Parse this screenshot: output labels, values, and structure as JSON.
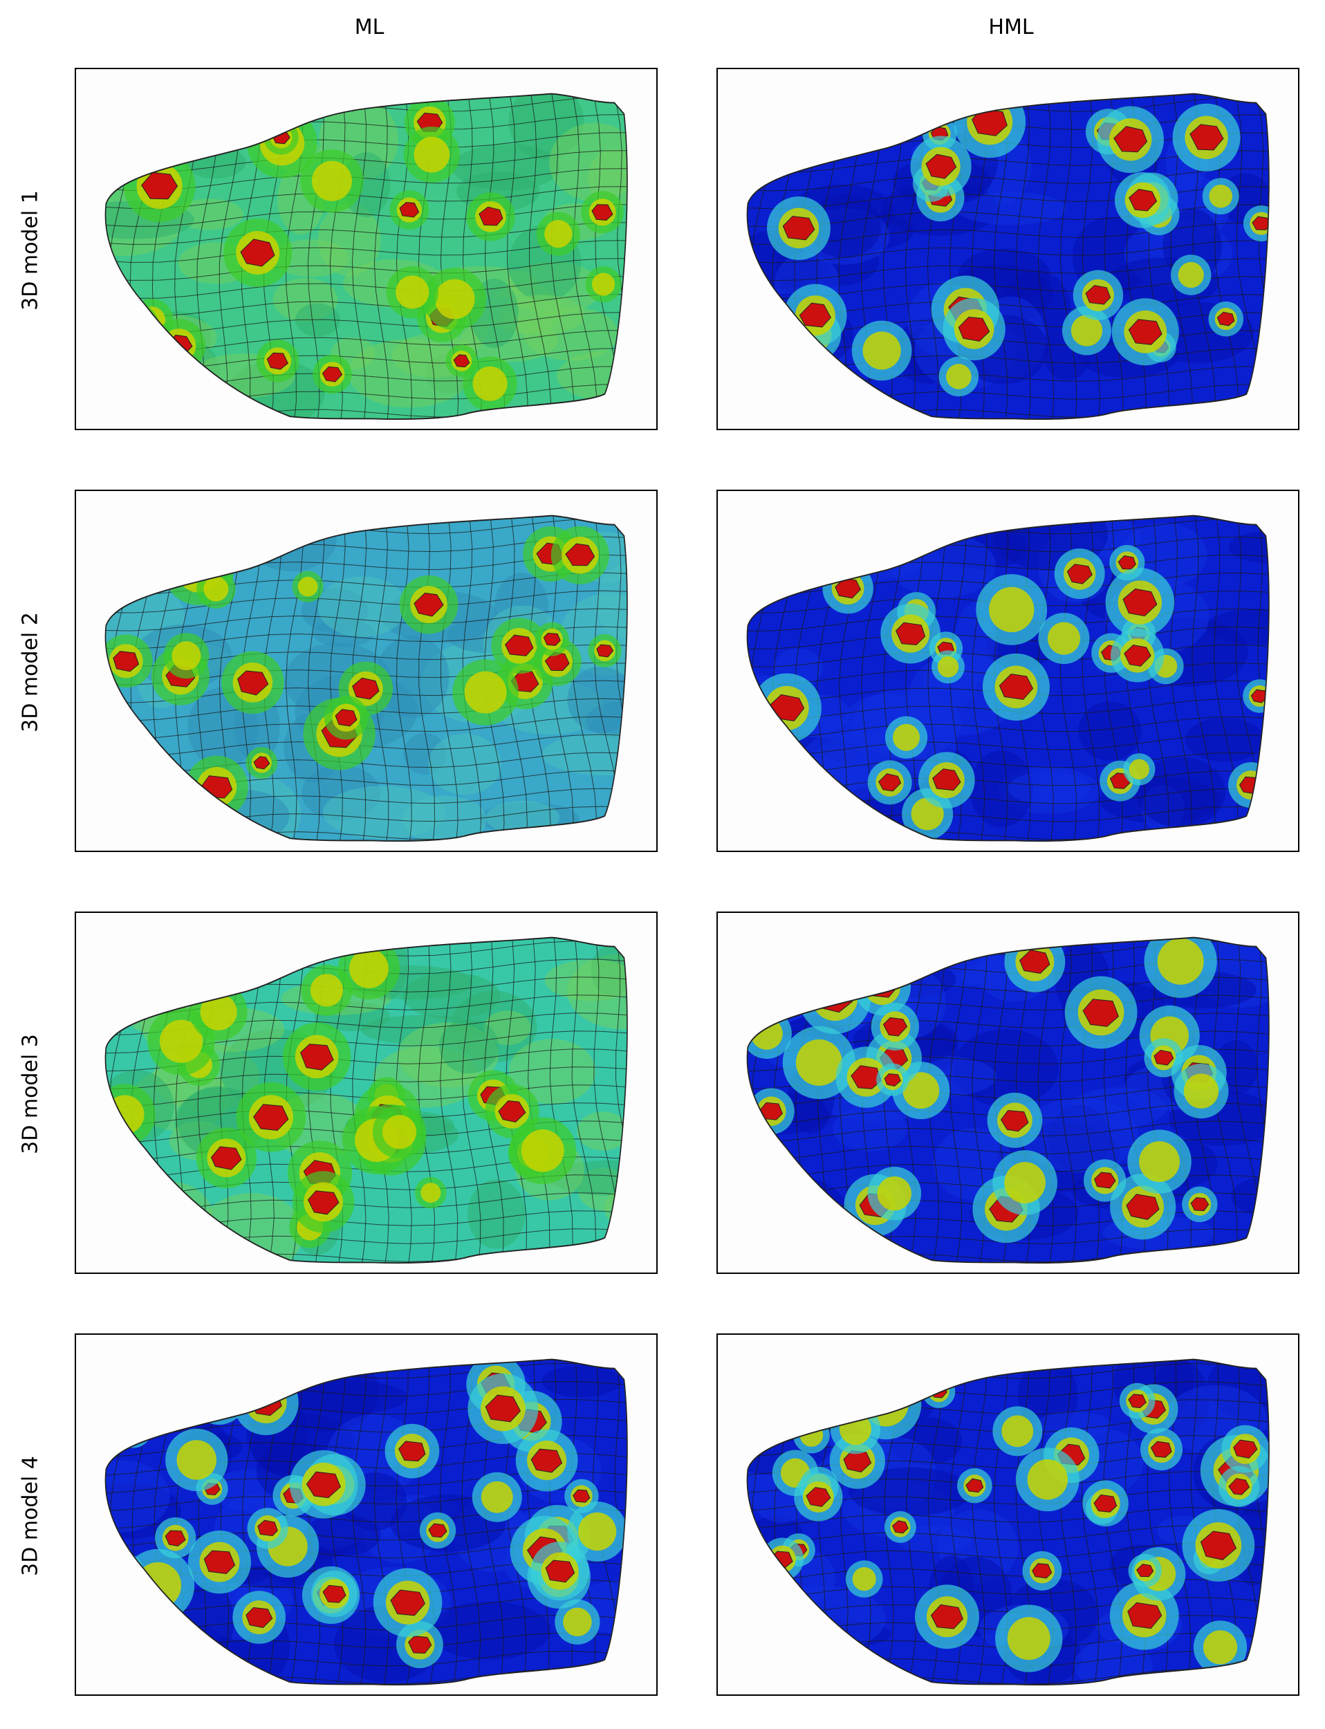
{
  "columns": [
    "ML",
    "HML"
  ],
  "rows": [
    "3D model 1",
    "3D model 2",
    "3D model 3",
    "3D model 4"
  ],
  "colors": {
    "frame": "#000000",
    "background": "#fdfdfd",
    "mesh_line": "#1a1a1a",
    "hotspot_red": "#cc1010",
    "hotspot_yellow": "#c8d400",
    "hotspot_green": "#3ccc2a",
    "hotspot_cyan": "#38d0d8",
    "ml_model1_base": "#3fc88a",
    "ml_model2_base": "#3aa8c8",
    "ml_model3_base": "#38c8a8",
    "low_blue": "#0a1fd0",
    "deep_blue": "#0610b0"
  },
  "panels": [
    {
      "row": 0,
      "col": 0,
      "base": "ml_model1_base",
      "hot": "mixed"
    },
    {
      "row": 0,
      "col": 1,
      "base": "low_blue",
      "hot": "sparse"
    },
    {
      "row": 1,
      "col": 0,
      "base": "ml_model2_base",
      "hot": "mixed"
    },
    {
      "row": 1,
      "col": 1,
      "base": "low_blue",
      "hot": "sparse"
    },
    {
      "row": 2,
      "col": 0,
      "base": "ml_model3_base",
      "hot": "mixed"
    },
    {
      "row": 2,
      "col": 1,
      "base": "low_blue",
      "hot": "sparse"
    },
    {
      "row": 3,
      "col": 0,
      "base": "low_blue",
      "hot": "dense"
    },
    {
      "row": 3,
      "col": 1,
      "base": "low_blue",
      "hot": "dense"
    }
  ]
}
